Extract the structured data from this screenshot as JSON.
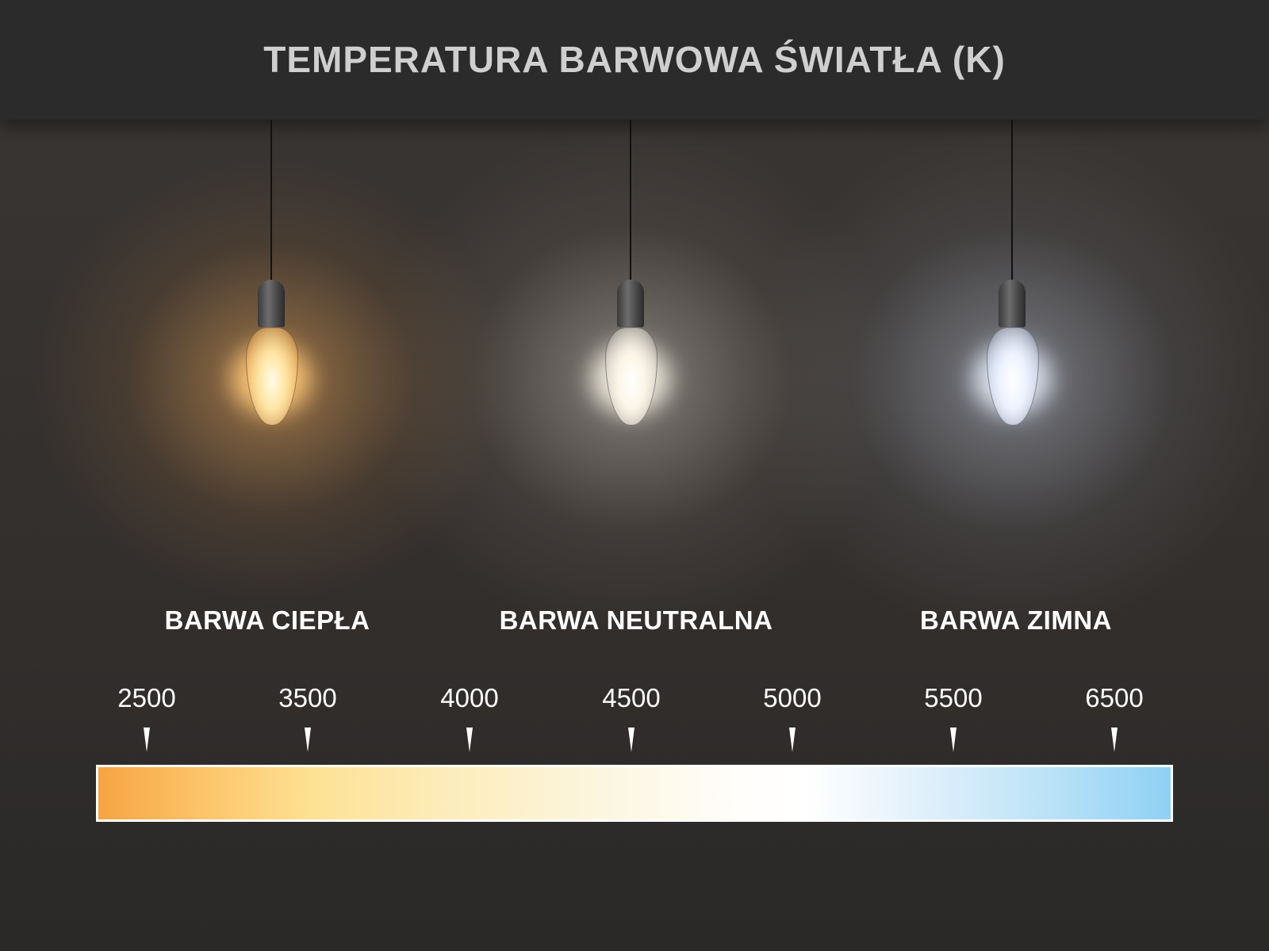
{
  "title": "TEMPERATURA BARWOWA ŚWIATŁA (K)",
  "categories": [
    {
      "label": "BARWA CIEPŁA",
      "color": "#f5b060"
    },
    {
      "label": "BARWA NEUTRALNA",
      "color": "#f5f0e6"
    },
    {
      "label": "BARWA ZIMNA",
      "color": "#dde6f5"
    }
  ],
  "scale": {
    "ticks": [
      "2500",
      "3500",
      "4000",
      "4500",
      "5000",
      "5500",
      "6500"
    ],
    "gradient_start": "#f6a443",
    "gradient_end": "#8fd0f4"
  }
}
